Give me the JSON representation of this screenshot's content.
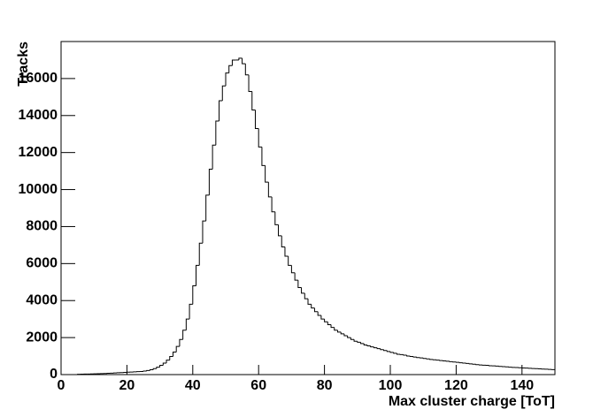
{
  "chart_data": {
    "type": "histogram",
    "xlabel": "Max cluster charge [ToT]",
    "ylabel": "Tracks",
    "bins": [
      0,
      1,
      2,
      3,
      4,
      5,
      6,
      7,
      8,
      9,
      10,
      11,
      12,
      13,
      14,
      15,
      16,
      17,
      18,
      19,
      20,
      21,
      22,
      23,
      24,
      25,
      26,
      27,
      28,
      29,
      30,
      31,
      32,
      33,
      34,
      35,
      36,
      37,
      38,
      39,
      40,
      41,
      42,
      43,
      44,
      45,
      46,
      47,
      48,
      49,
      50,
      51,
      52,
      53,
      54,
      55,
      56,
      57,
      58,
      59,
      60,
      61,
      62,
      63,
      64,
      65,
      66,
      67,
      68,
      69,
      70,
      71,
      72,
      73,
      74,
      75,
      76,
      77,
      78,
      79,
      80,
      81,
      82,
      83,
      84,
      85,
      86,
      87,
      88,
      89,
      90,
      91,
      92,
      93,
      94,
      95,
      96,
      97,
      98,
      99,
      100,
      101,
      102,
      103,
      104,
      105,
      106,
      107,
      108,
      109,
      110,
      111,
      112,
      113,
      114,
      115,
      116,
      117,
      118,
      119,
      120,
      121,
      122,
      123,
      124,
      125,
      126,
      127,
      128,
      129,
      130,
      131,
      132,
      133,
      134,
      135,
      136,
      137,
      138,
      139,
      140,
      141,
      142,
      143,
      144,
      145,
      146,
      147,
      148,
      149,
      150
    ],
    "values": [
      0,
      0,
      0,
      0,
      0,
      20,
      25,
      30,
      30,
      35,
      40,
      50,
      55,
      60,
      70,
      80,
      90,
      100,
      110,
      120,
      130,
      140,
      150,
      160,
      170,
      190,
      220,
      260,
      320,
      400,
      500,
      620,
      780,
      980,
      1220,
      1520,
      1900,
      2400,
      3000,
      3800,
      4800,
      5900,
      7100,
      8300,
      9700,
      11100,
      12400,
      13700,
      14800,
      15600,
      16300,
      16700,
      17000,
      17000,
      17100,
      16800,
      16200,
      15300,
      14300,
      13300,
      12300,
      11300,
      10400,
      9600,
      8800,
      8100,
      7500,
      6900,
      6400,
      5900,
      5500,
      5100,
      4700,
      4400,
      4100,
      3800,
      3600,
      3400,
      3200,
      3000,
      2850,
      2700,
      2550,
      2400,
      2300,
      2200,
      2100,
      2000,
      1900,
      1800,
      1750,
      1680,
      1600,
      1550,
      1500,
      1450,
      1400,
      1350,
      1300,
      1250,
      1200,
      1150,
      1100,
      1080,
      1050,
      1000,
      980,
      950,
      920,
      900,
      870,
      850,
      820,
      800,
      780,
      760,
      740,
      720,
      700,
      680,
      660,
      640,
      620,
      600,
      580,
      560,
      540,
      520,
      510,
      500,
      480,
      470,
      460,
      440,
      430,
      420,
      400,
      390,
      380,
      370,
      360,
      350,
      340,
      330,
      320,
      310,
      300,
      290,
      280,
      270
    ],
    "color": "#000000",
    "xlim": [
      0,
      150
    ],
    "xticks": [
      0,
      20,
      40,
      60,
      80,
      100,
      120,
      140
    ],
    "ylim": [
      0,
      18000
    ],
    "yticks": [
      0,
      2000,
      4000,
      6000,
      8000,
      10000,
      12000,
      14000,
      16000
    ]
  }
}
